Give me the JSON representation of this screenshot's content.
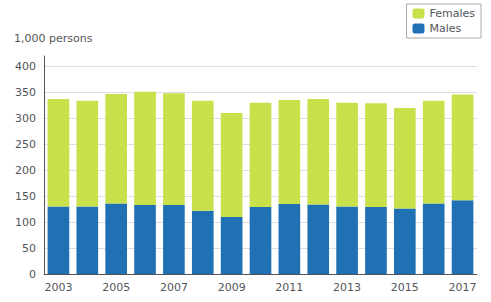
{
  "chart_data": {
    "type": "bar",
    "ylabel": "1,000 persons",
    "categories": [
      "2003",
      null,
      "2005",
      null,
      "2007",
      null,
      "2009",
      null,
      "2011",
      null,
      "2013",
      null,
      "2015",
      null,
      "2017"
    ],
    "series": [
      {
        "name": "Males",
        "color": "#2070B4",
        "values": [
          130,
          130,
          136,
          133,
          133,
          122,
          110,
          129,
          135,
          134,
          130,
          129,
          126,
          136,
          142
        ]
      },
      {
        "name": "Females",
        "color": "#C8E04A",
        "values": [
          207,
          204,
          211,
          218,
          215,
          212,
          200,
          201,
          200,
          203,
          200,
          200,
          194,
          198,
          204
        ]
      }
    ],
    "stacked": true,
    "ylim": [
      0,
      420
    ],
    "yticks": [
      0,
      50,
      100,
      150,
      200,
      250,
      300,
      350,
      400
    ],
    "grid": true,
    "legend": "upper right"
  }
}
